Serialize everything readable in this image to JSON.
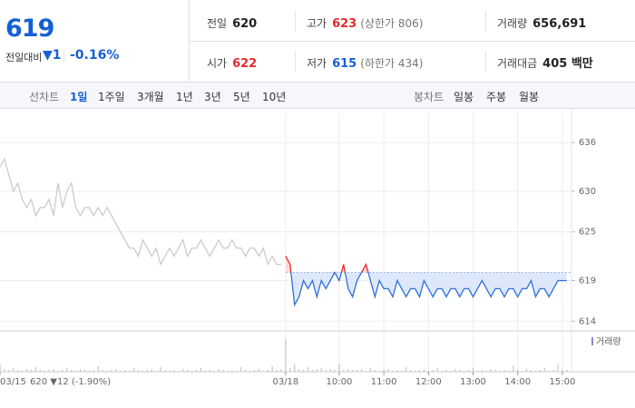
{
  "header": {
    "price": "619",
    "change_label": "전일대비",
    "change": "▼1",
    "change_rate": "-0.16%",
    "stats": [
      {
        "label": "전일",
        "value": "620"
      },
      {
        "label": "고가",
        "value": "623",
        "note": "(상한가 806)"
      },
      {
        "label": "거래량",
        "value": "656,691"
      },
      {
        "label": "시가",
        "value": "622"
      },
      {
        "label": "저가",
        "value": "615",
        "note": "(하한가 434)"
      },
      {
        "label": "거래대금",
        "value": "405 백만"
      }
    ]
  },
  "tabs": {
    "line_label": "선차트",
    "line_tabs": [
      "1일",
      "1주일",
      "3개월",
      "1년",
      "3년",
      "5년",
      "10년"
    ],
    "candle_label": "봉차트",
    "candle_tabs": [
      "일봉",
      "주봉",
      "월봉"
    ]
  },
  "chart_data": {
    "type": "line",
    "ylim": [
      612.8,
      639.6
    ],
    "yticks": [
      614,
      619,
      625,
      630,
      636
    ],
    "grid": true,
    "baseline": 620,
    "categories": [
      "03/15",
      null,
      null,
      null,
      null,
      null,
      null,
      null,
      null,
      null,
      null,
      null,
      null,
      null,
      null,
      null,
      null,
      null,
      null,
      null,
      null,
      null,
      null,
      null,
      null,
      null,
      null,
      null,
      null,
      null,
      null,
      null,
      null,
      null,
      null,
      null,
      null,
      null,
      null,
      null,
      null,
      null,
      null,
      null,
      null,
      null,
      null,
      null,
      null,
      null,
      null,
      null,
      null,
      null,
      null,
      null,
      null,
      null,
      null,
      null,
      null,
      null,
      null,
      null,
      "03/18",
      null,
      null,
      null,
      null,
      null,
      null,
      null,
      null,
      null,
      null,
      null,
      "10:00",
      null,
      null,
      null,
      null,
      null,
      null,
      null,
      null,
      null,
      "11:00",
      null,
      null,
      null,
      null,
      null,
      null,
      null,
      null,
      null,
      "12:00",
      null,
      null,
      null,
      null,
      null,
      null,
      null,
      null,
      null,
      "13:00",
      null,
      null,
      null,
      null,
      null,
      null,
      null,
      null,
      null,
      "14:00",
      null,
      null,
      null,
      null,
      null,
      null,
      null,
      null,
      null,
      "15:00",
      null
    ],
    "prev_summary": "620 ▼12 (-1.90%)",
    "series": [
      {
        "name": "03/15",
        "color": "#c8c8c8",
        "values": [
          633,
          634,
          632,
          630,
          631,
          629,
          628,
          629,
          627,
          628,
          628,
          629,
          627,
          631,
          628,
          630,
          631,
          628,
          627,
          628,
          628,
          627,
          628,
          627,
          628,
          627,
          626,
          625,
          624,
          623,
          623,
          622,
          624,
          623,
          622,
          623,
          621,
          622,
          623,
          622,
          623,
          624,
          622,
          623,
          623,
          624,
          623,
          622,
          623,
          624,
          623,
          623,
          624,
          623,
          623,
          622,
          623,
          623,
          622,
          623,
          621,
          622,
          621,
          621,
          null,
          null,
          null,
          null,
          null,
          null,
          null,
          null,
          null,
          null,
          null,
          null,
          null,
          null,
          null,
          null,
          null,
          null,
          null,
          null,
          null,
          null,
          null,
          null,
          null,
          null,
          null,
          null,
          null,
          null,
          null,
          null,
          null,
          null,
          null,
          null,
          null,
          null,
          null,
          null,
          null,
          null,
          null,
          null,
          null,
          null,
          null,
          null,
          null,
          null,
          null,
          null,
          null,
          null,
          null,
          null,
          null,
          null,
          null,
          null,
          null,
          null,
          null,
          null
        ]
      },
      {
        "name": "03/18",
        "color": "#2f6fd8",
        "up_color": "#e5292d",
        "values": [
          null,
          null,
          null,
          null,
          null,
          null,
          null,
          null,
          null,
          null,
          null,
          null,
          null,
          null,
          null,
          null,
          null,
          null,
          null,
          null,
          null,
          null,
          null,
          null,
          null,
          null,
          null,
          null,
          null,
          null,
          null,
          null,
          null,
          null,
          null,
          null,
          null,
          null,
          null,
          null,
          null,
          null,
          null,
          null,
          null,
          null,
          null,
          null,
          null,
          null,
          null,
          null,
          null,
          null,
          null,
          null,
          null,
          null,
          null,
          null,
          null,
          null,
          null,
          null,
          622,
          621,
          616,
          617,
          619,
          618,
          619,
          617,
          619,
          618,
          619,
          620,
          619,
          621,
          618,
          617,
          619,
          620,
          621,
          619,
          617,
          619,
          618,
          618,
          617,
          619,
          618,
          617,
          618,
          618,
          617,
          619,
          618,
          617,
          618,
          618,
          617,
          618,
          618,
          617,
          618,
          618,
          617,
          618,
          619,
          618,
          617,
          618,
          618,
          617,
          618,
          618,
          617,
          618,
          618,
          619,
          617,
          618,
          618,
          617,
          618,
          619,
          619,
          619
        ]
      }
    ],
    "volume": {
      "label": "거래량",
      "color": "#c4c4c4",
      "marker_color": "#9b7fd4",
      "ylim": [
        0,
        40
      ],
      "values": [
        8,
        3,
        2,
        4,
        2,
        1,
        3,
        2,
        5,
        2,
        1,
        2,
        3,
        1,
        2,
        4,
        2,
        1,
        3,
        2,
        1,
        2,
        6,
        2,
        1,
        2,
        3,
        1,
        2,
        1,
        4,
        2,
        1,
        2,
        3,
        1,
        5,
        2,
        1,
        2,
        1,
        3,
        2,
        1,
        2,
        4,
        1,
        2,
        1,
        3,
        2,
        1,
        2,
        1,
        5,
        2,
        1,
        2,
        3,
        1,
        2,
        6,
        2,
        3,
        36,
        4,
        8,
        3,
        2,
        5,
        2,
        3,
        4,
        2,
        3,
        2,
        9,
        2,
        3,
        2,
        2,
        3,
        1,
        4,
        2,
        1,
        2,
        3,
        1,
        2,
        1,
        5,
        2,
        1,
        2,
        3,
        1,
        2,
        4,
        1,
        2,
        1,
        3,
        2,
        1,
        2,
        4,
        1,
        2,
        1,
        3,
        2,
        1,
        2,
        1,
        7,
        2,
        1,
        3,
        2,
        1,
        2,
        4,
        1,
        2,
        8,
        3,
        2
      ]
    }
  }
}
